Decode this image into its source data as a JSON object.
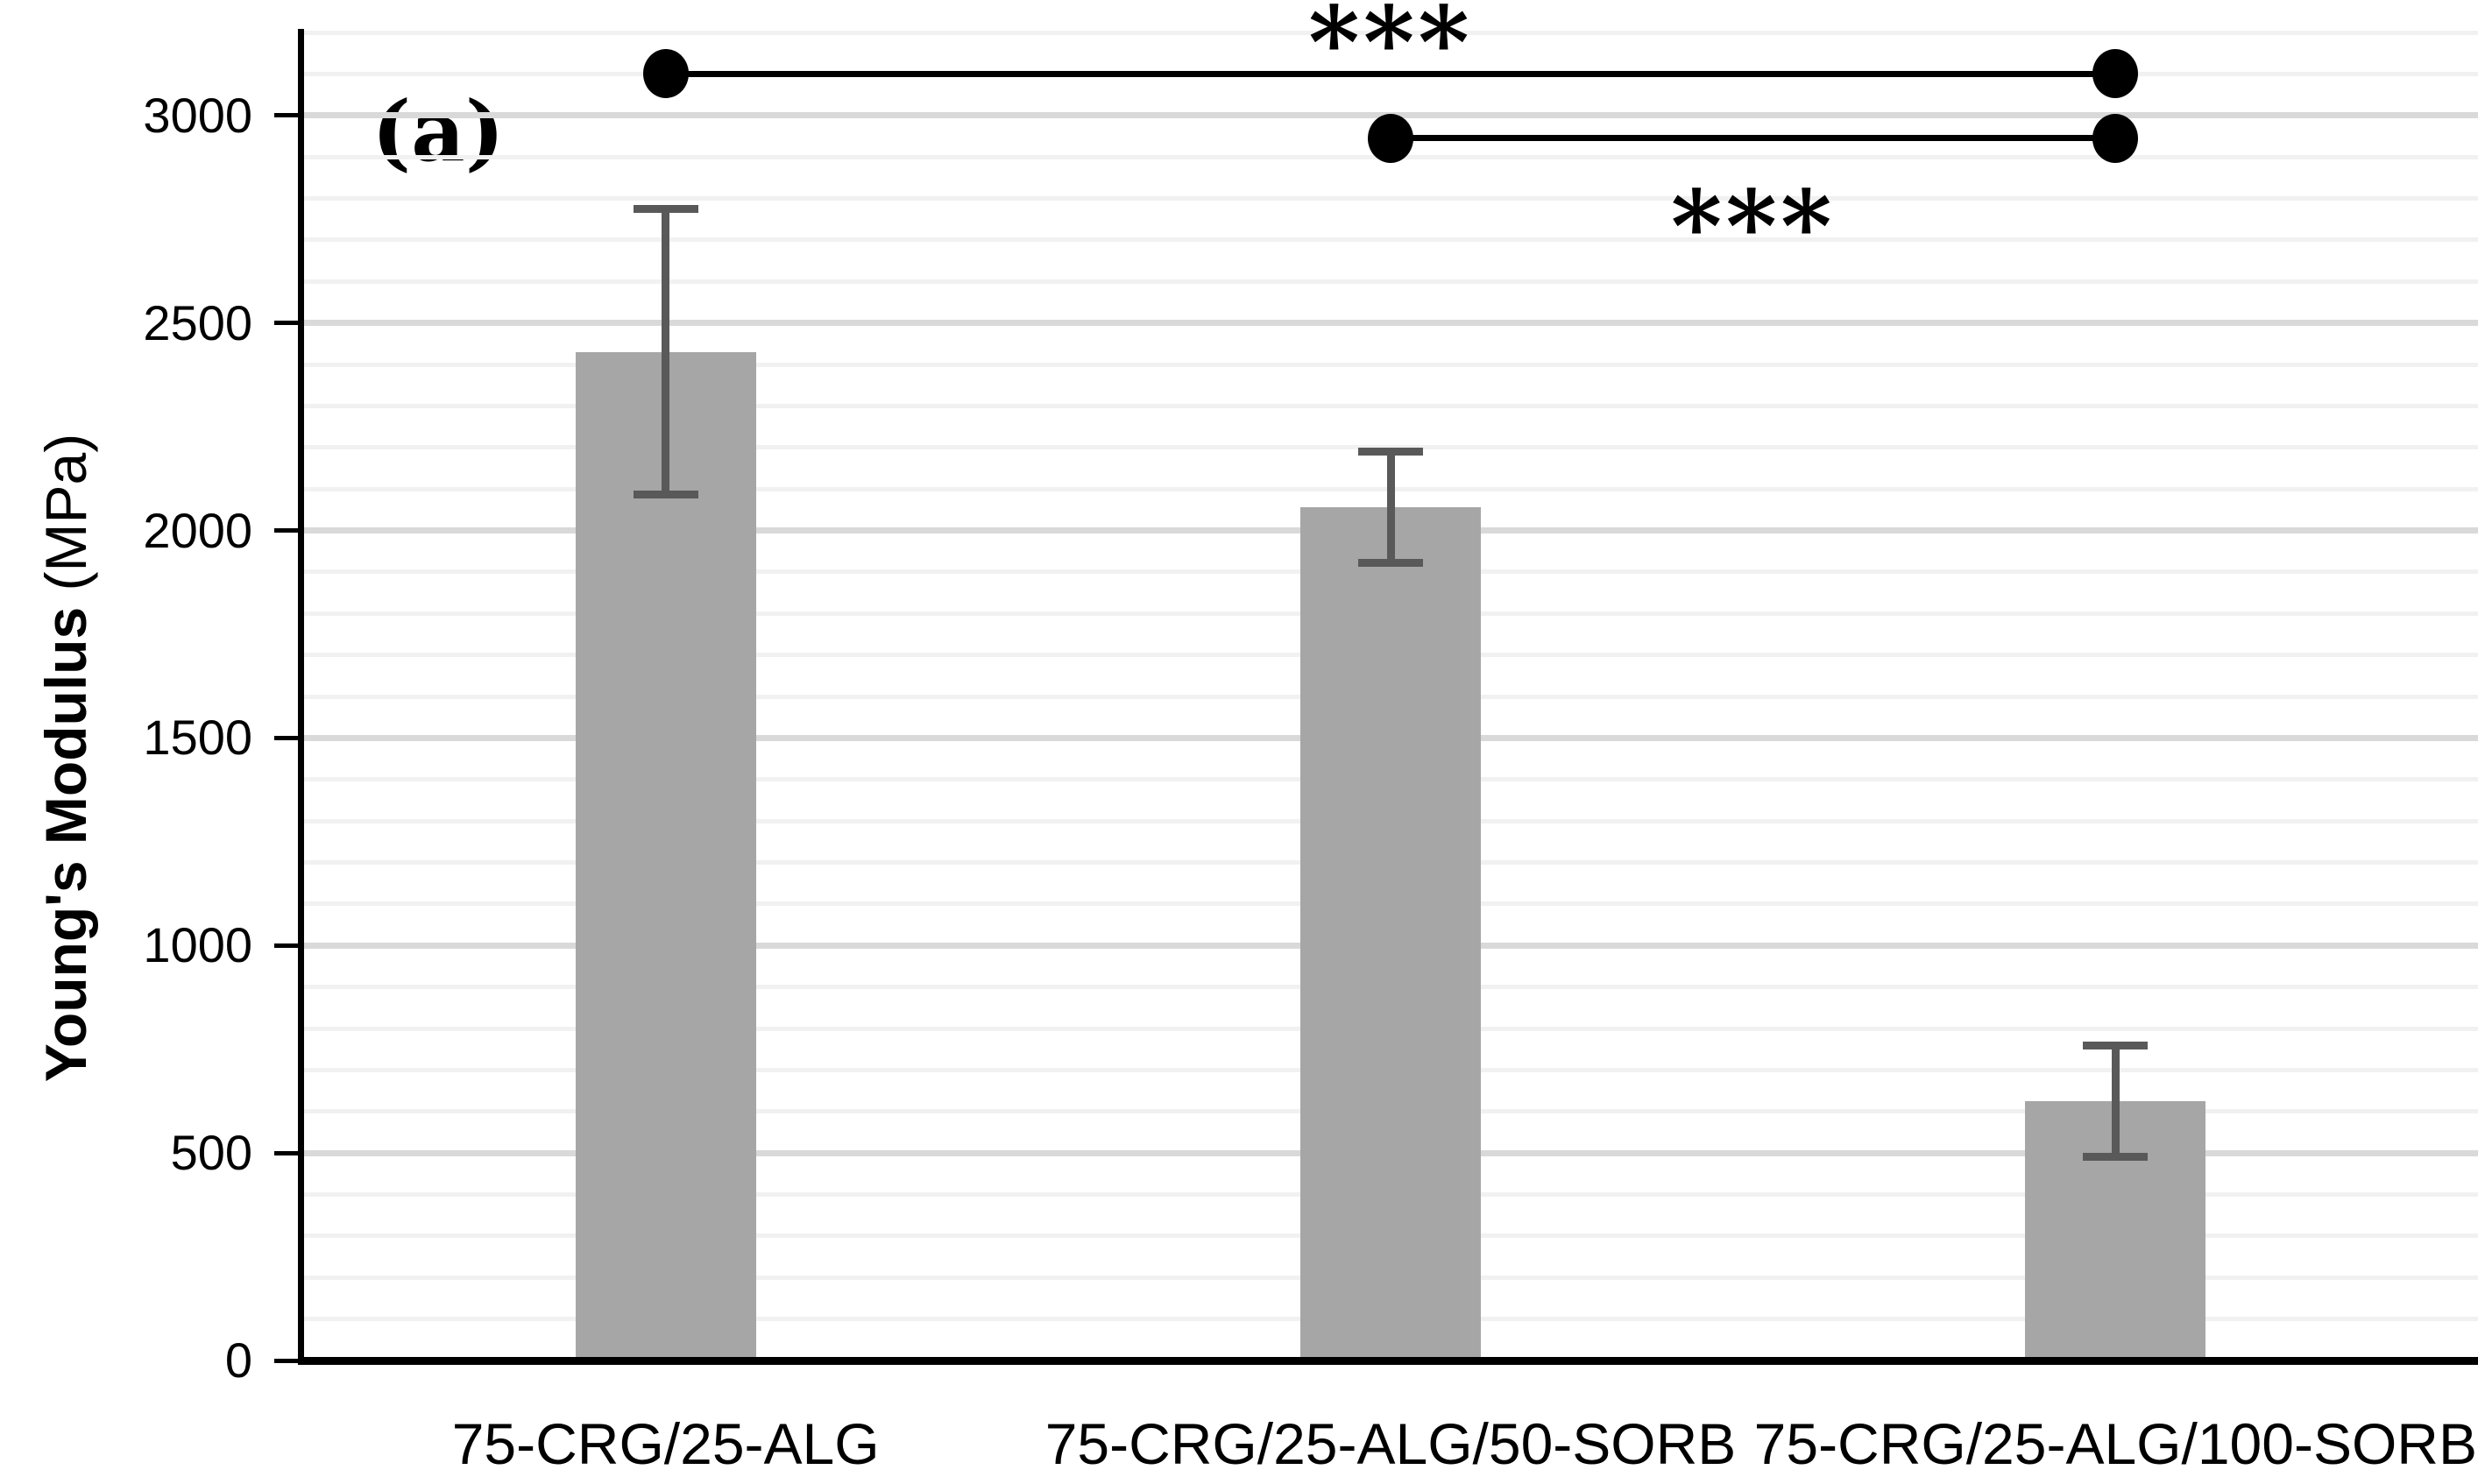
{
  "panel_label": "(a)",
  "y_axis_title": {
    "bold_part": "Young's Modulus",
    "unit_part": " (MPa)"
  },
  "chart_data": {
    "type": "bar",
    "title": "",
    "xlabel": "",
    "ylabel": "Young's Modulus (MPa)",
    "categories": [
      "75-CRG/25-ALG",
      "75-CRG/25-ALG/50-SORB",
      "75-CRG/25-ALG/100-SORB"
    ],
    "values": [
      2430,
      2055,
      625
    ],
    "error_bars": [
      345,
      135,
      135
    ],
    "ylim": [
      0,
      3200
    ],
    "y_major_step": 500,
    "y_minor_step": 100,
    "grid": "horizontal, minor every 100 (light), major every 500 (darker)",
    "legend": "none",
    "y_tick_values": [
      0,
      500,
      1000,
      1500,
      2000,
      2500,
      3000
    ],
    "y_tick_labels": [
      "0",
      "500",
      "1000",
      "1500",
      "2000",
      "2500",
      "3000"
    ],
    "bar_color": "#a6a6a6",
    "error_bar_color": "#595959",
    "gridline_minor_color": "#f1f1f1",
    "gridline_major_color": "#d9d9d9",
    "axis_color": "#000000",
    "significance": [
      {
        "from_bar": 0,
        "to_bar": 2,
        "level_mpa": 3100,
        "label": "***",
        "label_side": "above",
        "marker": "filled-circle-endpoints"
      },
      {
        "from_bar": 1,
        "to_bar": 2,
        "level_mpa": 2945,
        "label": "***",
        "label_side": "below",
        "marker": "filled-circle-endpoints"
      }
    ]
  }
}
